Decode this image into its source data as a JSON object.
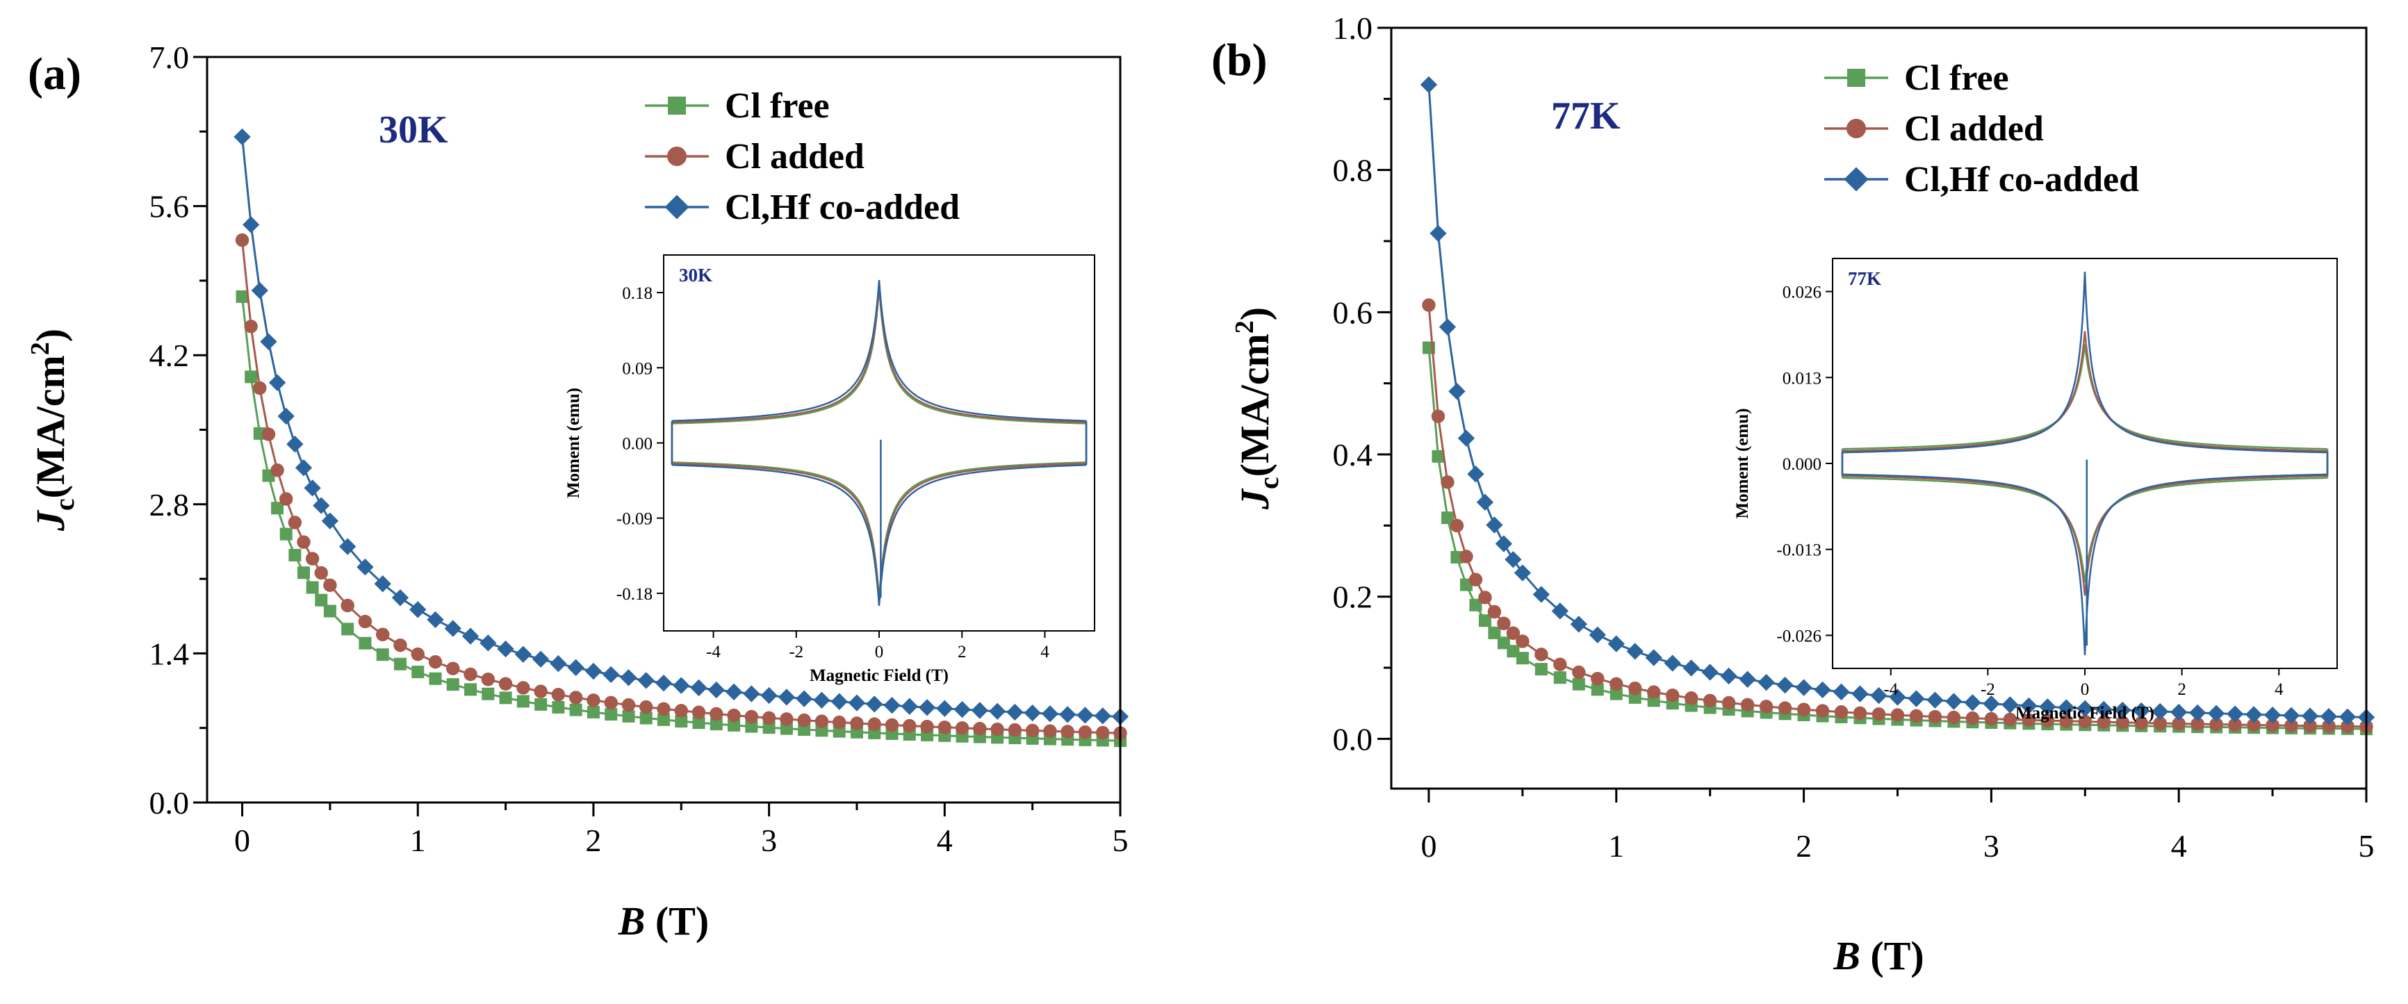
{
  "colors": {
    "cl_free": "#5a9e57",
    "cl_added": "#a55a4c",
    "clhf": "#2c649e",
    "temp_label": "#1c2a80",
    "axis": "#000000"
  },
  "chart_data": [
    {
      "id": "a",
      "type": "scatter",
      "panel_label": "(a)",
      "temperature_label": "30K",
      "xlabel_var": "B",
      "xlabel_unit": "(T)",
      "ylabel_var": "J",
      "ylabel_sub": "c",
      "ylabel_unit": "(MA/cm",
      "ylabel_sup": "2",
      "ylabel_close": ")",
      "xlim": [
        -0.2,
        5
      ],
      "ylim": [
        0,
        7
      ],
      "xticks": [
        "0",
        "1",
        "2",
        "3",
        "4",
        "5"
      ],
      "yticks": [
        "0.0",
        "1.4",
        "2.8",
        "4.2",
        "5.6",
        "7.0"
      ],
      "legend": [
        "Cl free",
        "Cl added",
        "Cl,Hf  co-added"
      ],
      "series": [
        {
          "name": "Cl free",
          "marker": "square",
          "jc0": 4.75,
          "floor": 0.38,
          "b0": 0.24,
          "end_drop": false
        },
        {
          "name": "Cl added",
          "marker": "circle",
          "jc0": 5.28,
          "floor": 0.42,
          "b0": 0.25,
          "end_drop": false
        },
        {
          "name": "Cl,Hf  co-added",
          "marker": "diamond",
          "jc0": 6.25,
          "floor": 0.48,
          "b0": 0.3,
          "end_drop": true
        }
      ],
      "inset": {
        "temperature_label": "30K",
        "xlabel": "Magnetic Field (T)",
        "ylabel": "Moment (emu)",
        "xlim": [
          -5.2,
          5.2
        ],
        "ylim": [
          -0.225,
          0.225
        ],
        "xticks": [
          "-4",
          "-2",
          "0",
          "2",
          "4"
        ],
        "yticks": [
          "-0.18",
          "-0.09",
          "0.00",
          "0.09",
          "0.18"
        ],
        "loops": [
          {
            "name": "Cl free",
            "m0": 0.188,
            "floor": 0.016,
            "b0": 0.22
          },
          {
            "name": "Cl added",
            "m0": 0.19,
            "floor": 0.017,
            "b0": 0.23
          },
          {
            "name": "Cl,Hf  co-added",
            "m0": 0.195,
            "floor": 0.018,
            "b0": 0.25
          }
        ]
      }
    },
    {
      "id": "b",
      "type": "scatter",
      "panel_label": "(b)",
      "temperature_label": "77K",
      "xlabel_var": "B",
      "xlabel_unit": "(T)",
      "ylabel_var": "J",
      "ylabel_sub": "c",
      "ylabel_unit": "(MA/cm",
      "ylabel_sup": "2",
      "ylabel_close": ")",
      "xlim": [
        -0.2,
        5
      ],
      "ylim": [
        -0.07,
        1.0
      ],
      "xticks": [
        "0",
        "1",
        "2",
        "3",
        "4",
        "5"
      ],
      "yticks": [
        "0.0",
        "0.2",
        "0.4",
        "0.6",
        "0.8",
        "1.0"
      ],
      "legend": [
        "Cl free",
        "Cl added",
        "Cl,Hf  co-added"
      ],
      "series": [
        {
          "name": "Cl free",
          "marker": "square",
          "jc0": 0.55,
          "floor": 0.0,
          "b0": 0.13,
          "end_drop": false
        },
        {
          "name": "Cl added",
          "marker": "circle",
          "jc0": 0.61,
          "floor": 0.0,
          "b0": 0.145,
          "end_drop": false
        },
        {
          "name": "Cl,Hf  co-added",
          "marker": "diamond",
          "jc0": 0.92,
          "floor": 0.0,
          "b0": 0.17,
          "end_drop": false
        }
      ],
      "inset": {
        "temperature_label": "77K",
        "xlabel": "Magnetic Field (T)",
        "ylabel": "Moment (emu)",
        "xlim": [
          -5.2,
          5.2
        ],
        "ylim": [
          -0.031,
          0.031
        ],
        "xticks": [
          "-4",
          "-2",
          "0",
          "2",
          "4"
        ],
        "yticks": [
          "-0.026",
          "-0.013",
          "0.000",
          "0.013",
          "0.026"
        ],
        "loops": [
          {
            "name": "Cl free",
            "m0": 0.018,
            "floor": 0.0014,
            "b0": 0.25
          },
          {
            "name": "Cl added",
            "m0": 0.02,
            "floor": 0.0011,
            "b0": 0.22
          },
          {
            "name": "Cl,Hf  co-added",
            "m0": 0.029,
            "floor": 0.0009,
            "b0": 0.14
          }
        ]
      }
    }
  ]
}
